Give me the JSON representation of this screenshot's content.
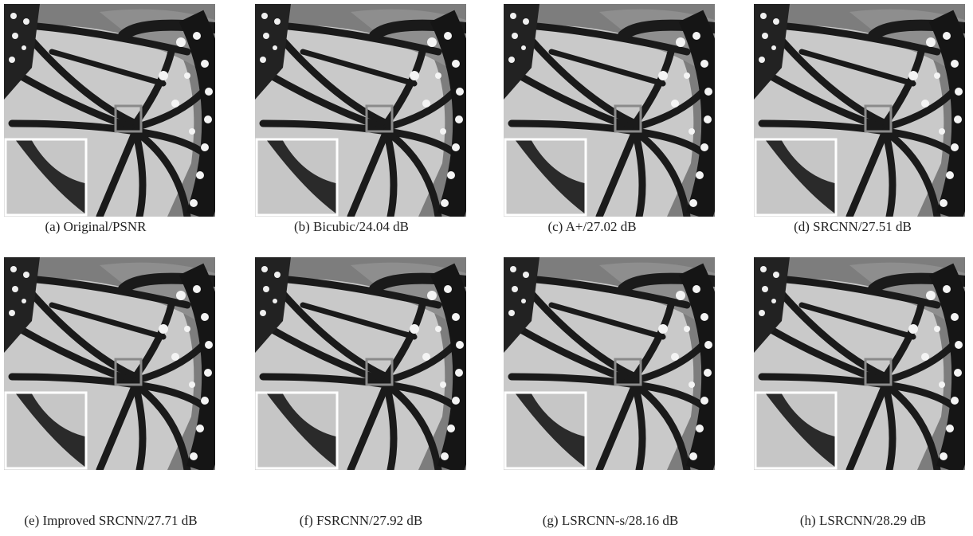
{
  "figure": {
    "captions": [
      "(a) Original/PSNR",
      "(b) Bicubic/24.04 dB",
      "(c) A+/27.02 dB",
      "(d) SRCNN/27.51 dB",
      "(e) Improved SRCNN/27.71 dB",
      "(f) FSRCNN/27.92 dB",
      "(g) LSRCNN-s/28.16 dB",
      "(h) LSRCNN/28.29 dB"
    ]
  }
}
